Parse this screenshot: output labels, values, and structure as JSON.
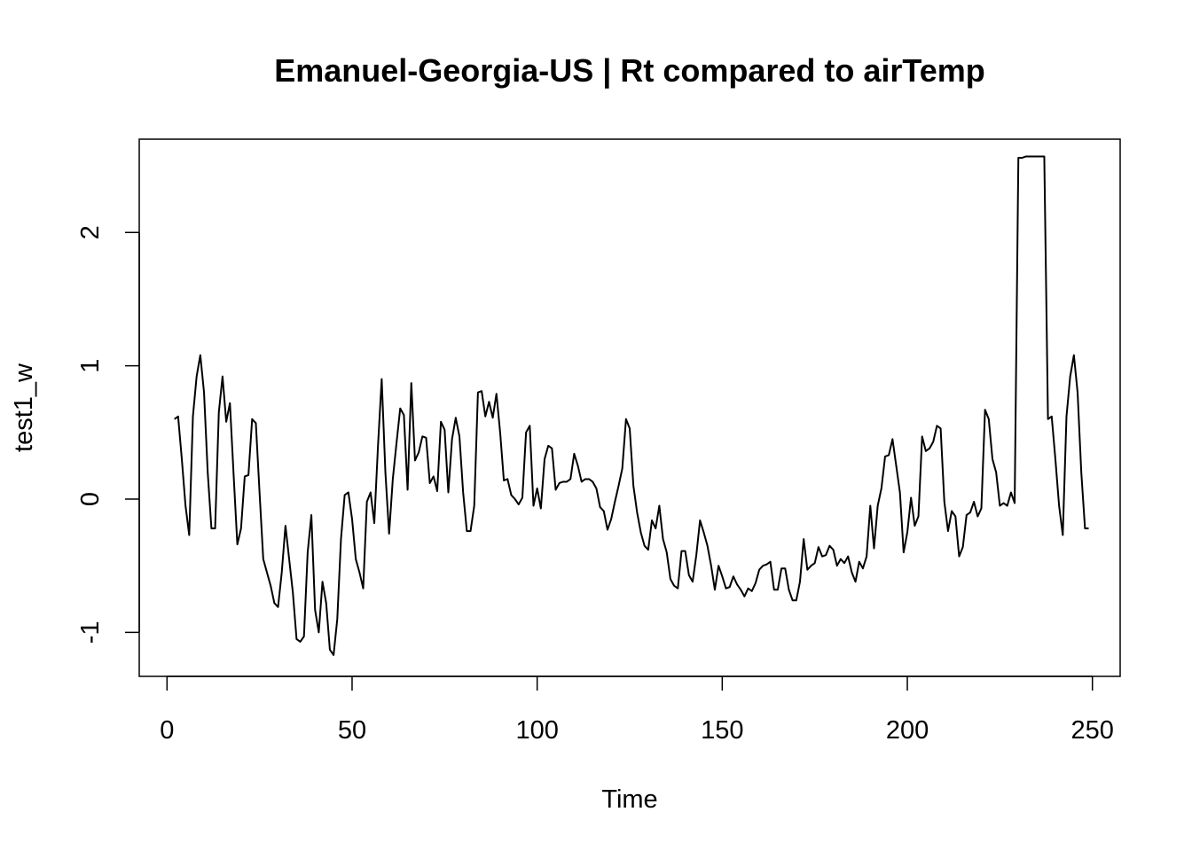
{
  "chart_data": {
    "type": "line",
    "title": "Emanuel-Georgia-US | Rt compared to airTemp",
    "xlabel": "Time",
    "ylabel": "test1_w",
    "xlim": [
      -7.5,
      257.5
    ],
    "ylim": [
      -1.33,
      2.7
    ],
    "x_ticks": [
      0,
      50,
      100,
      150,
      200,
      250
    ],
    "y_ticks": [
      -1,
      0,
      1,
      2
    ],
    "x_tick_labels": [
      "0",
      "50",
      "100",
      "150",
      "200",
      "250"
    ],
    "y_tick_labels": [
      "-1",
      "0",
      "1",
      "2"
    ],
    "grid": false,
    "legend": "none",
    "line_color": "#000000",
    "series": [
      {
        "x_start": 2,
        "values": [
          0.6,
          0.62,
          0.3,
          -0.05,
          -0.27,
          0.62,
          0.92,
          1.08,
          0.8,
          0.2,
          -0.22,
          -0.22,
          0.65,
          0.92,
          0.58,
          0.72,
          0.18,
          -0.34,
          -0.22,
          0.17,
          0.18,
          0.6,
          0.57,
          0.05,
          -0.45,
          -0.55,
          -0.65,
          -0.78,
          -0.81,
          -0.55,
          -0.2,
          -0.45,
          -0.7,
          -1.05,
          -1.07,
          -1.03,
          -0.4,
          -0.12,
          -0.83,
          -1.0,
          -0.62,
          -0.78,
          -1.13,
          -1.17,
          -0.9,
          -0.3,
          0.03,
          0.05,
          -0.15,
          -0.45,
          -0.55,
          -0.67,
          -0.02,
          0.05,
          -0.18,
          0.4,
          0.9,
          0.2,
          -0.26,
          0.15,
          0.42,
          0.68,
          0.63,
          0.07,
          0.87,
          0.29,
          0.35,
          0.47,
          0.46,
          0.12,
          0.17,
          0.06,
          0.58,
          0.52,
          0.05,
          0.45,
          0.61,
          0.47,
          0.05,
          -0.24,
          -0.24,
          -0.05,
          0.8,
          0.81,
          0.62,
          0.73,
          0.61,
          0.79,
          0.5,
          0.14,
          0.15,
          0.03,
          0.0,
          -0.04,
          0.01,
          0.5,
          0.55,
          -0.05,
          0.08,
          -0.07,
          0.3,
          0.4,
          0.38,
          0.07,
          0.12,
          0.13,
          0.13,
          0.15,
          0.34,
          0.25,
          0.13,
          0.15,
          0.15,
          0.13,
          0.08,
          -0.06,
          -0.09,
          -0.23,
          -0.15,
          -0.02,
          0.1,
          0.23,
          0.6,
          0.53,
          0.1,
          -0.1,
          -0.25,
          -0.35,
          -0.38,
          -0.16,
          -0.22,
          -0.05,
          -0.3,
          -0.4,
          -0.6,
          -0.65,
          -0.67,
          -0.39,
          -0.39,
          -0.57,
          -0.62,
          -0.42,
          -0.16,
          -0.25,
          -0.35,
          -0.5,
          -0.68,
          -0.5,
          -0.58,
          -0.67,
          -0.66,
          -0.58,
          -0.64,
          -0.68,
          -0.73,
          -0.67,
          -0.69,
          -0.63,
          -0.53,
          -0.5,
          -0.49,
          -0.47,
          -0.68,
          -0.68,
          -0.52,
          -0.52,
          -0.68,
          -0.76,
          -0.76,
          -0.62,
          -0.3,
          -0.53,
          -0.5,
          -0.48,
          -0.36,
          -0.43,
          -0.42,
          -0.35,
          -0.38,
          -0.5,
          -0.45,
          -0.48,
          -0.43,
          -0.55,
          -0.62,
          -0.47,
          -0.52,
          -0.43,
          -0.05,
          -0.37,
          -0.05,
          0.08,
          0.32,
          0.33,
          0.45,
          0.25,
          0.05,
          -0.4,
          -0.25,
          0.01,
          -0.2,
          -0.13,
          0.47,
          0.36,
          0.38,
          0.43,
          0.55,
          0.53,
          -0.02,
          -0.24,
          -0.09,
          -0.13,
          -0.43,
          -0.36,
          -0.12,
          -0.1,
          -0.02,
          -0.13,
          -0.07,
          0.67,
          0.6,
          0.3,
          0.2,
          -0.05,
          -0.03,
          -0.05,
          0.05,
          -0.03,
          2.56,
          2.56,
          2.57,
          2.57,
          2.57,
          2.57,
          2.57,
          2.57,
          0.6,
          0.62,
          0.3,
          -0.05,
          -0.27,
          0.62,
          0.92,
          1.08,
          0.8,
          0.2,
          -0.22,
          -0.22
        ]
      }
    ]
  }
}
